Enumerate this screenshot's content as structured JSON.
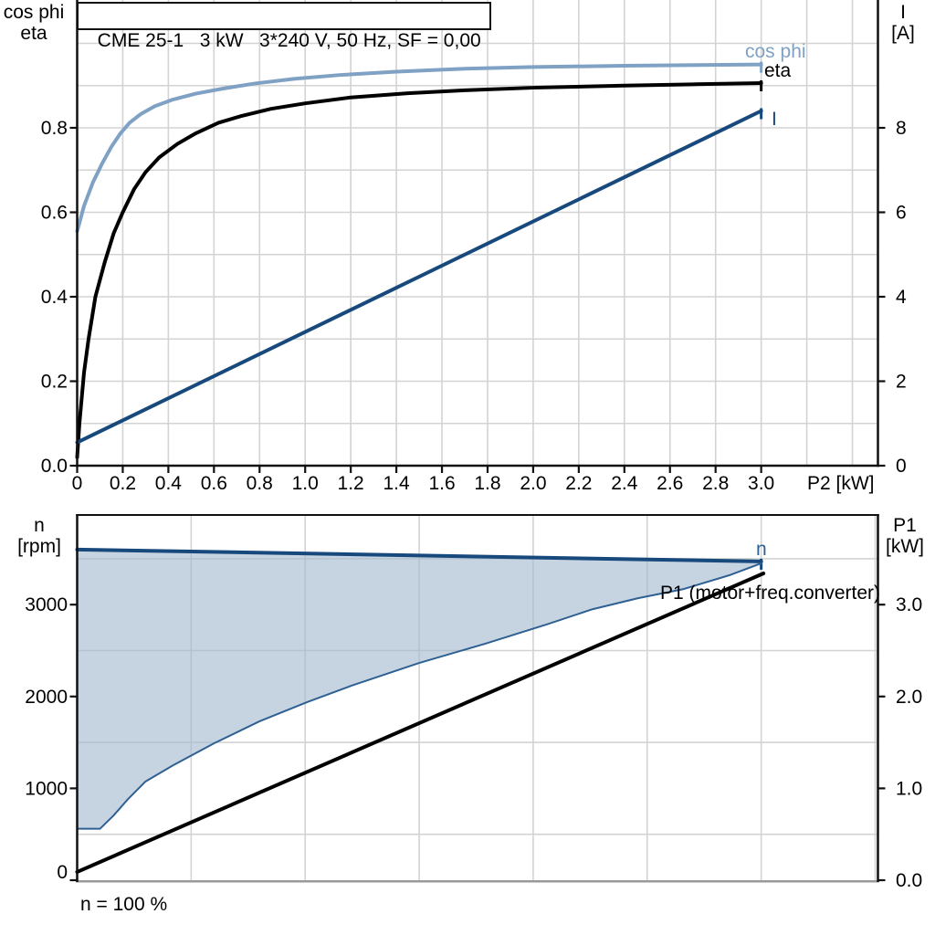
{
  "title": "CME 25-1   3 kW   3*240 V, 50 Hz, SF = 0,00",
  "colors": {
    "cos_phi": "#7fa1c4",
    "line_blue": "#17497c",
    "boundary_blue": "#2e6093",
    "fill_blue": "rgba(163,185,208,0.62)",
    "grid": "#d3d3d3",
    "axis": "#111111",
    "border_gray": "#999999",
    "black": "#000000"
  },
  "labels": {
    "top_left_line1": "cos phi",
    "top_left_line2": "eta",
    "top_right_line1": "I",
    "top_right_line2": "[A]",
    "bottom_left_line1": "n",
    "bottom_left_line2": "[rpm]",
    "bottom_right_line1": "P1",
    "bottom_right_line2": "[kW]",
    "curve_cos_phi": "cos phi",
    "curve_eta": "eta",
    "curve_I": "I",
    "curve_n": "n",
    "curve_p1": "P1 (motor+freq.converter)",
    "footer": "n = 100 %",
    "xlabel_top": "P2 [kW]"
  },
  "chart_data": [
    {
      "id": "top",
      "type": "line",
      "title": "CME 25-1   3 kW   3*240 V, 50 Hz, SF = 0,00",
      "xlabel": "P2 [kW]",
      "ylabel_left": "cos phi / eta",
      "ylabel_right": "I [A]",
      "xlim": [
        0,
        3.512
      ],
      "ylim_left": [
        0,
        1.1027
      ],
      "ylim_right": [
        0,
        11.027
      ],
      "grid_x": [
        0.2,
        0.4,
        0.6,
        0.8,
        1.0,
        1.2,
        1.4,
        1.6,
        1.8,
        2.0,
        2.2,
        2.4,
        2.6,
        2.8,
        3.0,
        3.2,
        3.4
      ],
      "grid_y": [
        0.1,
        0.2,
        0.3,
        0.4,
        0.5,
        0.6,
        0.7,
        0.8,
        0.9,
        1.0
      ],
      "x_ticks": {
        "values": [
          0,
          0.2,
          0.4,
          0.6,
          0.8,
          1.0,
          1.2,
          1.4,
          1.6,
          1.8,
          2.0,
          2.2,
          2.4,
          2.6,
          2.8,
          3.0
        ],
        "labels": [
          "0",
          "0.2",
          "0.4",
          "0.6",
          "0.8",
          "1.0",
          "1.2",
          "1.4",
          "1.6",
          "1.8",
          "2.0",
          "2.2",
          "2.4",
          "2.6",
          "2.8",
          "3.0"
        ]
      },
      "y_ticks_left": {
        "values": [
          0,
          0.2,
          0.4,
          0.6,
          0.8
        ],
        "labels": [
          "0.0",
          "0.2",
          "0.4",
          "0.6",
          "0.8"
        ]
      },
      "y_ticks_right": {
        "values": [
          0,
          2,
          4,
          6,
          8
        ],
        "labels": [
          "0",
          "2",
          "4",
          "6",
          "8"
        ]
      },
      "series": [
        {
          "name": "cos phi",
          "axis": "left",
          "color": "#7fa1c4",
          "width": 4,
          "end_tick": true,
          "points": [
            [
              0,
              0.555
            ],
            [
              0.03,
              0.615
            ],
            [
              0.07,
              0.672
            ],
            [
              0.11,
              0.716
            ],
            [
              0.15,
              0.755
            ],
            [
              0.19,
              0.787
            ],
            [
              0.23,
              0.812
            ],
            [
              0.28,
              0.833
            ],
            [
              0.34,
              0.851
            ],
            [
              0.42,
              0.867
            ],
            [
              0.52,
              0.881
            ],
            [
              0.64,
              0.893
            ],
            [
              0.78,
              0.905
            ],
            [
              0.95,
              0.916
            ],
            [
              1.15,
              0.925
            ],
            [
              1.4,
              0.933
            ],
            [
              1.7,
              0.94
            ],
            [
              2.0,
              0.944
            ],
            [
              2.4,
              0.947
            ],
            [
              3.0,
              0.95
            ]
          ]
        },
        {
          "name": "eta",
          "axis": "left",
          "color": "#000000",
          "width": 4,
          "end_tick": true,
          "points": [
            [
              0,
              0.02
            ],
            [
              0.01,
              0.1
            ],
            [
              0.03,
              0.22
            ],
            [
              0.05,
              0.3
            ],
            [
              0.08,
              0.4
            ],
            [
              0.12,
              0.48
            ],
            [
              0.16,
              0.55
            ],
            [
              0.2,
              0.6
            ],
            [
              0.25,
              0.655
            ],
            [
              0.3,
              0.695
            ],
            [
              0.36,
              0.73
            ],
            [
              0.44,
              0.762
            ],
            [
              0.52,
              0.787
            ],
            [
              0.62,
              0.812
            ],
            [
              0.72,
              0.828
            ],
            [
              0.85,
              0.845
            ],
            [
              1.0,
              0.858
            ],
            [
              1.2,
              0.872
            ],
            [
              1.45,
              0.882
            ],
            [
              1.7,
              0.889
            ],
            [
              2.0,
              0.895
            ],
            [
              2.4,
              0.9
            ],
            [
              2.7,
              0.903
            ],
            [
              3.0,
              0.906
            ]
          ]
        },
        {
          "name": "I",
          "axis": "right",
          "color": "#17497c",
          "width": 4,
          "end_tick": true,
          "points": [
            [
              0,
              0.55
            ],
            [
              3.0,
              8.4
            ]
          ]
        }
      ]
    },
    {
      "id": "bottom",
      "type": "line",
      "xlabel": "",
      "ylabel_left": "n [rpm]",
      "ylabel_right": "P1 [kW]",
      "xlim": [
        0,
        3.512
      ],
      "ylim_left": [
        0,
        3986
      ],
      "ylim_right": [
        0,
        3.986
      ],
      "grid_x": [
        0.5,
        1.0,
        1.5,
        2.0,
        2.5,
        3.0,
        3.5
      ],
      "grid_y": [
        500,
        1500,
        2500,
        3500
      ],
      "x_ticks": {
        "values": [],
        "labels": []
      },
      "y_ticks_left": {
        "values": [
          0,
          1000,
          2000,
          3000
        ],
        "labels": [
          "0",
          "1000",
          "2000",
          "3000"
        ],
        "dys": [
          -2,
          7,
          7,
          7
        ]
      },
      "y_ticks_right": {
        "values": [
          0,
          1,
          2,
          3
        ],
        "labels": [
          "0.0",
          "1.0",
          "2.0",
          "3.0"
        ]
      },
      "region": {
        "name": "speed / P1 operating envelope",
        "fill": "rgba(163,185,208,0.62)",
        "upper_series": "n",
        "lower_series": "P1 (motor+freq.converter)"
      },
      "series": [
        {
          "name": "n",
          "axis": "left",
          "color": "#17497c",
          "width": 4,
          "end_tick": true,
          "points": [
            [
              0,
              3600
            ],
            [
              3.0,
              3470
            ]
          ]
        },
        {
          "name": "P1 (motor+freq.converter)",
          "axis": "right",
          "color": "#2e6093",
          "width": 2,
          "end_tick": false,
          "role": "region-lower-boundary",
          "points": [
            [
              0,
              0.56
            ],
            [
              0.1,
              0.56
            ],
            [
              0.16,
              0.705
            ],
            [
              0.22,
              0.875
            ],
            [
              0.3,
              1.075
            ],
            [
              0.42,
              1.25
            ],
            [
              0.6,
              1.49
            ],
            [
              0.8,
              1.73
            ],
            [
              1.01,
              1.94
            ],
            [
              1.2,
              2.115
            ],
            [
              1.5,
              2.365
            ],
            [
              1.79,
              2.575
            ],
            [
              2.06,
              2.785
            ],
            [
              2.26,
              2.95
            ],
            [
              2.46,
              3.07
            ],
            [
              2.66,
              3.17
            ],
            [
              2.86,
              3.32
            ],
            [
              3.0,
              3.45
            ]
          ]
        },
        {
          "name": "P1 line (black, unlabeled)",
          "axis": "right",
          "color": "#000000",
          "width": 4,
          "end_tick": false,
          "points": [
            [
              0,
              0.09
            ],
            [
              3.01,
              3.34
            ]
          ]
        }
      ]
    }
  ]
}
